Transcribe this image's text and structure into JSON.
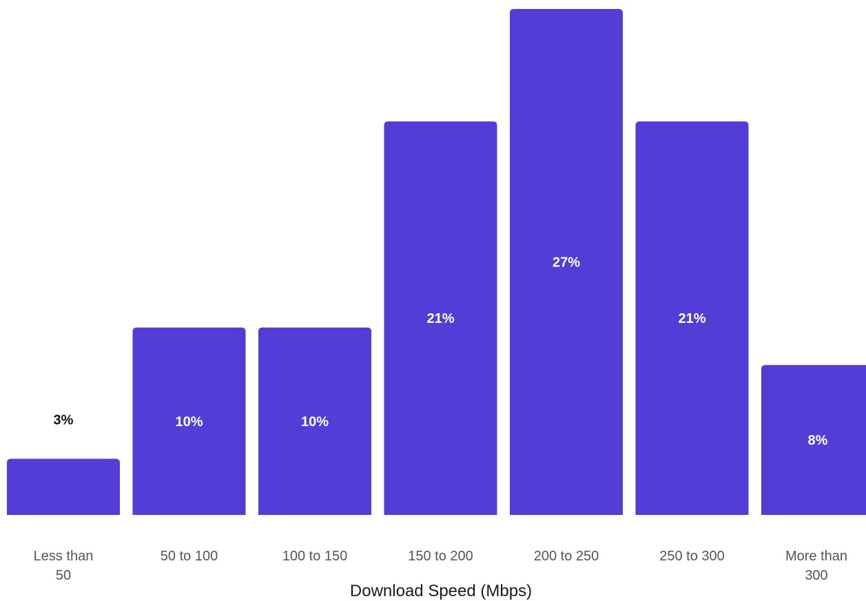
{
  "chart_data": {
    "type": "bar",
    "categories": [
      [
        "Less than",
        "50"
      ],
      [
        "50 to 100"
      ],
      [
        "100 to 150"
      ],
      [
        "150 to 200"
      ],
      [
        "200 to 250"
      ],
      [
        "250 to 300"
      ],
      [
        "More than",
        "300"
      ]
    ],
    "values": [
      3,
      10,
      10,
      21,
      27,
      21,
      8
    ],
    "data_labels": [
      "3%",
      "10%",
      "10%",
      "21%",
      "27%",
      "21%",
      "8%"
    ],
    "title": "",
    "xlabel": "Download Speed (Mbps)",
    "ylabel": "",
    "ylim": [
      0,
      27
    ],
    "grid": false,
    "legend": "none",
    "colors": {
      "bar": "#523ed7",
      "label_inside": "#ffffff",
      "label_outside": "#111111",
      "tick": "#555555"
    }
  }
}
